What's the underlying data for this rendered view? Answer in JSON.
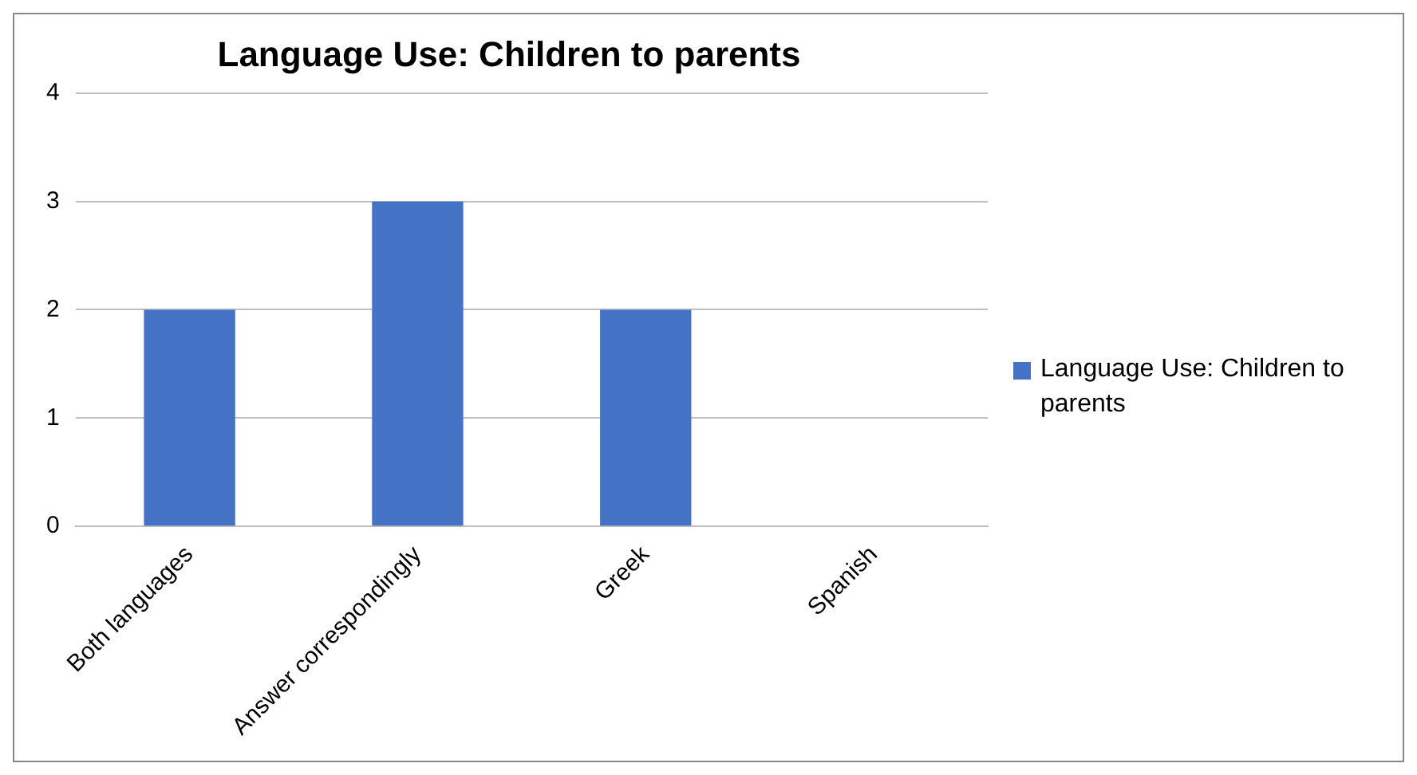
{
  "chart_data": {
    "type": "bar",
    "title": "Language Use: Children to parents",
    "categories": [
      "Both languages",
      "Answer correspondingly",
      "Greek",
      "Spanish"
    ],
    "series": [
      {
        "name": "Language Use: Children to parents",
        "color": "#4472c4",
        "values": [
          2,
          3,
          2,
          0
        ]
      }
    ],
    "ylim": [
      0,
      4
    ],
    "yticks": [
      0,
      1,
      2,
      3,
      4
    ],
    "grid": "y",
    "legend": "right"
  }
}
